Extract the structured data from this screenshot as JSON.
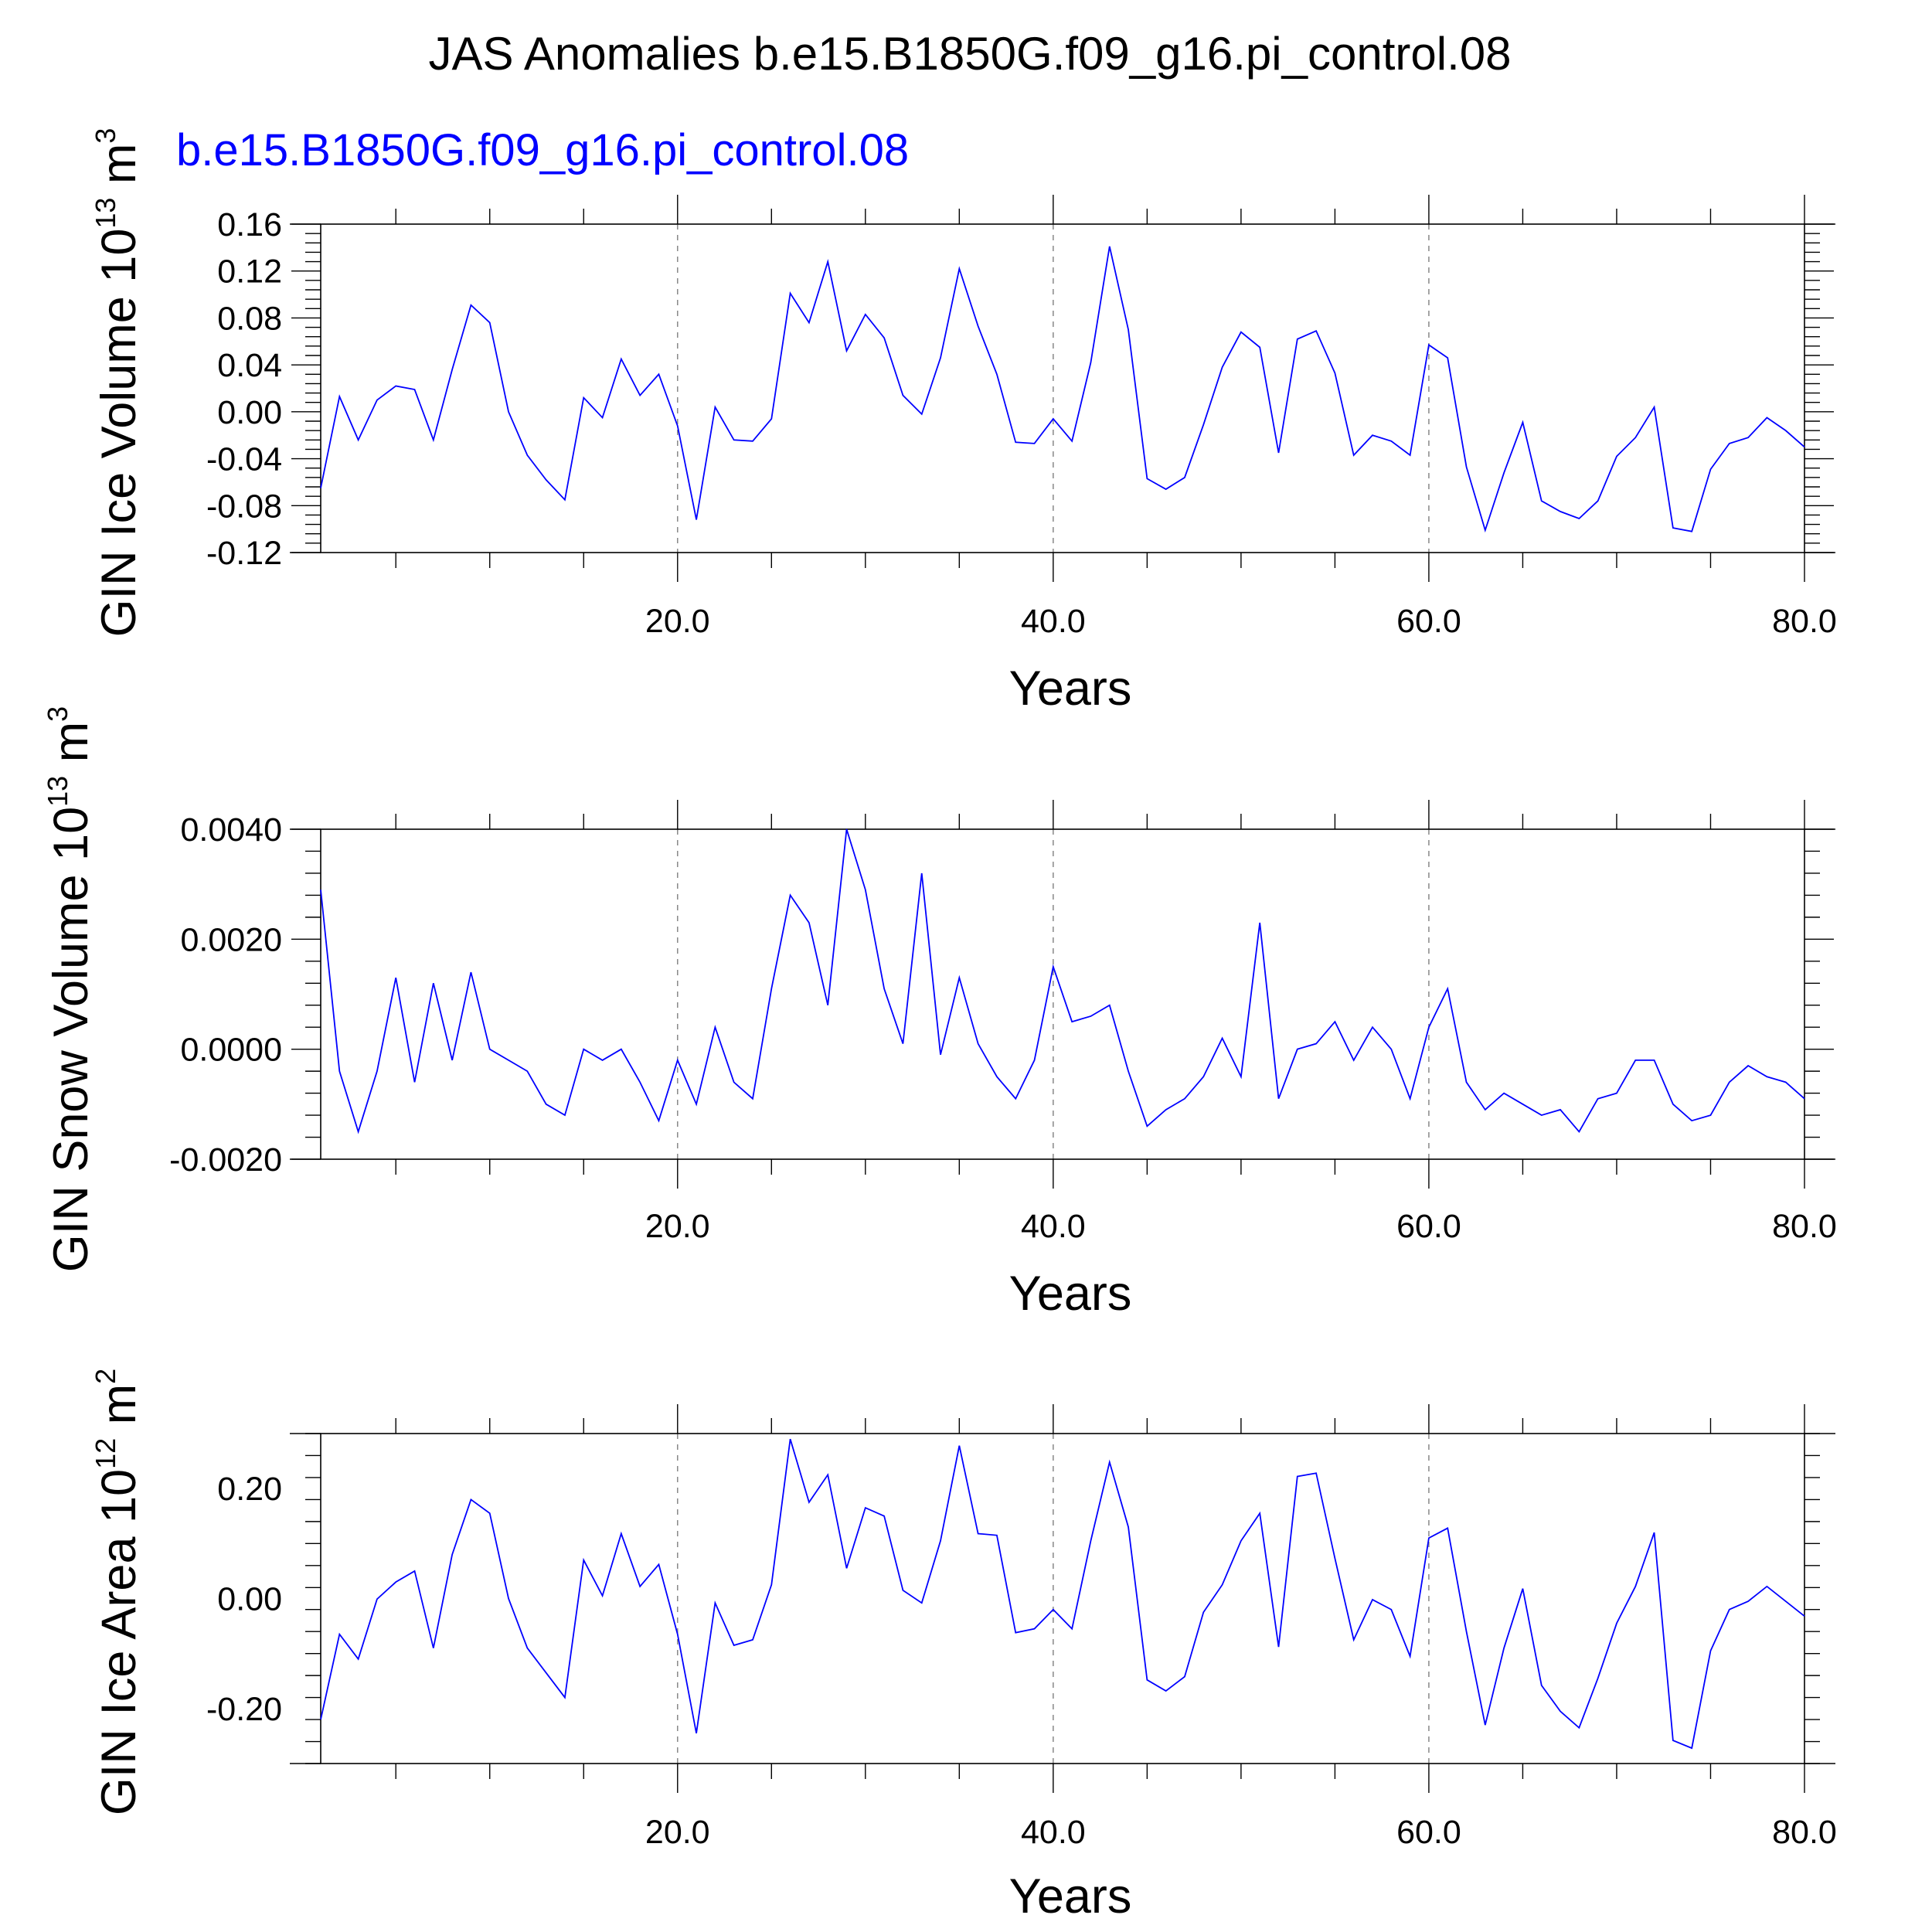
{
  "chart_data": {
    "type": "line",
    "title": "JAS Anomalies b.e15.B1850G.f09_g16.pi_control.08",
    "subtitle": "b.e15.B1850G.f09_g16.pi_control.08",
    "series_color": "#0000ff",
    "x": [
      1,
      2,
      3,
      4,
      5,
      6,
      7,
      8,
      9,
      10,
      11,
      12,
      13,
      14,
      15,
      16,
      17,
      18,
      19,
      20,
      21,
      22,
      23,
      24,
      25,
      26,
      27,
      28,
      29,
      30,
      31,
      32,
      33,
      34,
      35,
      36,
      37,
      38,
      39,
      40,
      41,
      42,
      43,
      44,
      45,
      46,
      47,
      48,
      49,
      50,
      51,
      52,
      53,
      54,
      55,
      56,
      57,
      58,
      59,
      60,
      61,
      62,
      63,
      64,
      65,
      66,
      67,
      68,
      69,
      70,
      71,
      72,
      73,
      74,
      75,
      76,
      77,
      78,
      79,
      80
    ],
    "xlim": [
      1,
      80
    ],
    "x_ticks": [
      20,
      40,
      60,
      80
    ],
    "x_tick_labels": [
      "20.0",
      "40.0",
      "60.0",
      "80.0"
    ],
    "xlabel": "Years",
    "panels": [
      {
        "name": "ice-volume",
        "ylabel": {
          "text": "GIN Ice Volume 10",
          "exp": "13",
          "unit": " m",
          "unit_exp": "3"
        },
        "ylim": [
          -0.12,
          0.16
        ],
        "y_ticks": [
          -0.12,
          -0.08,
          -0.04,
          0.0,
          0.04,
          0.08,
          0.12,
          0.16
        ],
        "y_tick_labels": [
          "-0.12",
          "-0.08",
          "-0.04",
          "0.00",
          "0.04",
          "0.08",
          "0.12",
          "0.16"
        ],
        "values": [
          -0.065,
          0.013,
          -0.024,
          0.01,
          0.022,
          0.019,
          -0.024,
          0.036,
          0.091,
          0.076,
          0.0,
          -0.037,
          -0.058,
          -0.075,
          0.012,
          -0.005,
          0.045,
          0.014,
          0.032,
          -0.012,
          -0.092,
          0.004,
          -0.024,
          -0.025,
          -0.006,
          0.101,
          0.076,
          0.128,
          0.052,
          0.083,
          0.063,
          0.014,
          -0.002,
          0.046,
          0.122,
          0.073,
          0.032,
          -0.026,
          -0.027,
          -0.006,
          -0.025,
          0.042,
          0.141,
          0.07,
          -0.057,
          -0.066,
          -0.056,
          -0.011,
          0.038,
          0.068,
          0.055,
          -0.035,
          0.062,
          0.069,
          0.033,
          -0.037,
          -0.02,
          -0.025,
          -0.037,
          0.057,
          0.046,
          -0.047,
          -0.101,
          -0.052,
          -0.009,
          -0.076,
          -0.085,
          -0.091,
          -0.076,
          -0.038,
          -0.022,
          0.004,
          -0.099,
          -0.102,
          -0.049,
          -0.027,
          -0.022,
          -0.005,
          -0.016,
          -0.03
        ]
      },
      {
        "name": "snow-volume",
        "ylabel": {
          "text": "GIN Snow Volume 10",
          "exp": "13",
          "unit": " m",
          "unit_exp": "3"
        },
        "ylim": [
          -0.002,
          0.004
        ],
        "y_ticks": [
          -0.002,
          0.0,
          0.002,
          0.004
        ],
        "y_tick_labels": [
          "-0.0020",
          "0.0000",
          "0.0020",
          "0.0040"
        ],
        "values": [
          0.0029,
          -0.0004,
          -0.0015,
          -0.0004,
          0.0013,
          -0.0006,
          0.0012,
          -0.0002,
          0.0014,
          0.0,
          -0.0002,
          -0.0004,
          -0.001,
          -0.0012,
          0.0,
          -0.0002,
          0.0,
          -0.0006,
          -0.0013,
          -0.0002,
          -0.001,
          0.0004,
          -0.0006,
          -0.0009,
          0.0011,
          0.0028,
          0.0023,
          0.0008,
          0.004,
          0.0029,
          0.0011,
          0.0001,
          0.0032,
          -0.0001,
          0.0013,
          0.0001,
          -0.0005,
          -0.0009,
          -0.0002,
          0.0015,
          0.0005,
          0.0006,
          0.0008,
          -0.0004,
          -0.0014,
          -0.0011,
          -0.0009,
          -0.0005,
          0.0002,
          -0.0005,
          0.0023,
          -0.0009,
          0.0,
          0.0001,
          0.0005,
          -0.0002,
          0.0004,
          0.0,
          -0.0009,
          0.0004,
          0.0011,
          -0.0006,
          -0.0011,
          -0.0008,
          -0.001,
          -0.0012,
          -0.0011,
          -0.0015,
          -0.0009,
          -0.0008,
          -0.0002,
          -0.0002,
          -0.001,
          -0.0013,
          -0.0012,
          -0.0006,
          -0.0003,
          -0.0005,
          -0.0006,
          -0.0009
        ]
      },
      {
        "name": "ice-area",
        "ylabel": {
          "text": "GIN Ice Area 10",
          "exp": "12",
          "unit": " m",
          "unit_exp": "2"
        },
        "ylim": [
          -0.3,
          0.3
        ],
        "y_ticks": [
          -0.2,
          0.0,
          0.2
        ],
        "y_tick_labels": [
          "-0.20",
          "0.00",
          "0.20"
        ],
        "values": [
          -0.22,
          -0.065,
          -0.11,
          -0.001,
          0.03,
          0.05,
          -0.09,
          0.08,
          0.18,
          0.155,
          0.0,
          -0.09,
          -0.135,
          -0.18,
          0.07,
          0.005,
          0.118,
          0.022,
          0.062,
          -0.065,
          -0.245,
          -0.008,
          -0.085,
          -0.075,
          0.025,
          0.29,
          0.175,
          0.225,
          0.055,
          0.165,
          0.15,
          0.015,
          -0.008,
          0.105,
          0.278,
          0.118,
          0.115,
          -0.062,
          -0.055,
          -0.02,
          -0.055,
          0.105,
          0.248,
          0.13,
          -0.148,
          -0.168,
          -0.142,
          -0.025,
          0.025,
          0.105,
          0.155,
          -0.088,
          0.222,
          0.228,
          0.073,
          -0.075,
          -0.002,
          -0.02,
          -0.105,
          0.11,
          0.128,
          -0.06,
          -0.23,
          -0.09,
          0.018,
          -0.158,
          -0.205,
          -0.235,
          -0.145,
          -0.045,
          0.022,
          0.12,
          -0.258,
          -0.272,
          -0.095,
          -0.02,
          -0.005,
          0.022,
          -0.005,
          -0.032
        ]
      }
    ]
  }
}
